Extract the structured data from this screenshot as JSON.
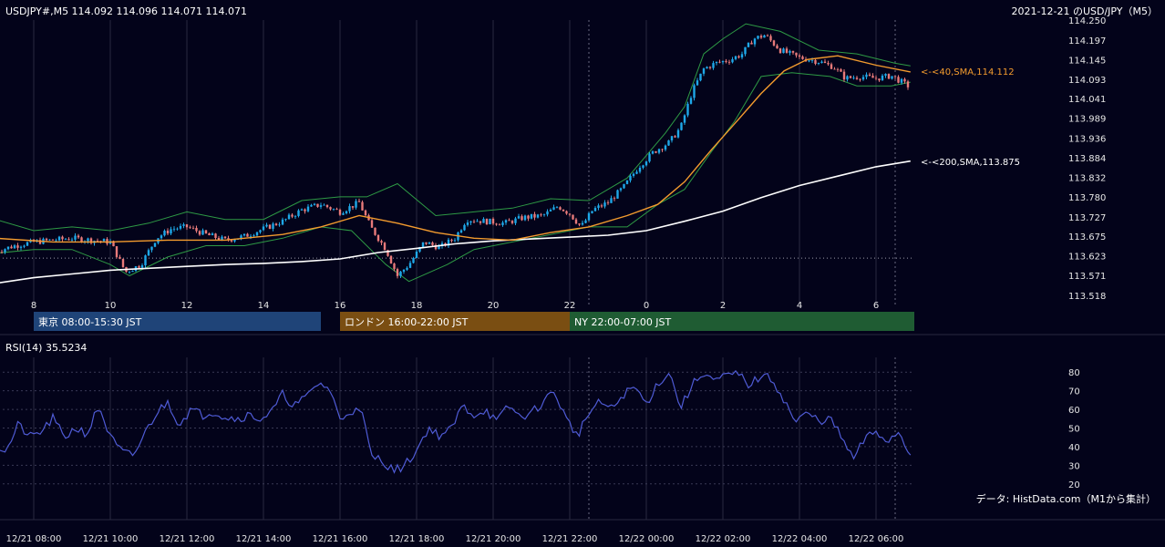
{
  "header": {
    "symbol_info": "USDJPY#,M5 114.092 114.096 114.071 114.071",
    "chart_caption": "2021-12-21 のUSD/JPY（M5）"
  },
  "chart_data": [
    {
      "type": "candlestick",
      "title": "USDJPY#,M5 114.092 114.096 114.071 114.071",
      "subtitle": "2021-12-21 のUSD/JPY（M5）",
      "ylim": [
        113.518,
        114.25
      ],
      "y_ticks": [
        "114.250",
        "114.197",
        "114.145",
        "114.093",
        "114.041",
        "113.989",
        "113.936",
        "113.884",
        "113.832",
        "113.780",
        "113.727",
        "113.675",
        "113.623",
        "113.571",
        "113.518"
      ],
      "x_ticks": [
        "8",
        "10",
        "12",
        "14",
        "16",
        "18",
        "20",
        "22",
        "0",
        "2",
        "4",
        "6"
      ],
      "x_range_hours": [
        7.0,
        30.9
      ],
      "reference_level": 113.617,
      "close_path": [
        [
          7.0,
          113.635
        ],
        [
          7.5,
          113.65
        ],
        [
          8.0,
          113.66
        ],
        [
          8.5,
          113.665
        ],
        [
          9.0,
          113.67
        ],
        [
          9.5,
          113.665
        ],
        [
          10.0,
          113.66
        ],
        [
          10.4,
          113.58
        ],
        [
          10.8,
          113.6
        ],
        [
          11.2,
          113.67
        ],
        [
          11.6,
          113.695
        ],
        [
          12.0,
          113.7
        ],
        [
          12.5,
          113.68
        ],
        [
          13.0,
          113.665
        ],
        [
          13.5,
          113.675
        ],
        [
          14.0,
          113.695
        ],
        [
          14.5,
          113.715
        ],
        [
          15.0,
          113.745
        ],
        [
          15.5,
          113.76
        ],
        [
          16.0,
          113.74
        ],
        [
          16.5,
          113.765
        ],
        [
          16.8,
          113.7
        ],
        [
          17.2,
          113.64
        ],
        [
          17.5,
          113.57
        ],
        [
          17.8,
          113.6
        ],
        [
          18.2,
          113.66
        ],
        [
          18.6,
          113.645
        ],
        [
          19.0,
          113.67
        ],
        [
          19.3,
          113.72
        ],
        [
          19.8,
          113.715
        ],
        [
          20.3,
          113.71
        ],
        [
          20.8,
          113.725
        ],
        [
          21.3,
          113.73
        ],
        [
          21.7,
          113.755
        ],
        [
          22.0,
          113.735
        ],
        [
          22.3,
          113.7
        ],
        [
          22.6,
          113.745
        ],
        [
          23.0,
          113.765
        ],
        [
          23.4,
          113.805
        ],
        [
          23.8,
          113.86
        ],
        [
          24.2,
          113.9
        ],
        [
          24.6,
          113.925
        ],
        [
          24.9,
          113.965
        ],
        [
          25.2,
          114.06
        ],
        [
          25.5,
          114.12
        ],
        [
          25.8,
          114.135
        ],
        [
          26.2,
          114.145
        ],
        [
          26.5,
          114.16
        ],
        [
          26.8,
          114.2
        ],
        [
          27.1,
          114.21
        ],
        [
          27.5,
          114.17
        ],
        [
          28.0,
          114.15
        ],
        [
          28.5,
          114.14
        ],
        [
          28.9,
          114.125
        ],
        [
          29.2,
          114.095
        ],
        [
          29.6,
          114.1
        ],
        [
          30.0,
          114.095
        ],
        [
          30.4,
          114.102
        ],
        [
          30.9,
          114.071
        ]
      ],
      "bb_upper": [
        [
          7.0,
          113.72
        ],
        [
          8.0,
          113.69
        ],
        [
          9.0,
          113.7
        ],
        [
          10.0,
          113.69
        ],
        [
          11.0,
          113.71
        ],
        [
          12.0,
          113.74
        ],
        [
          13.0,
          113.72
        ],
        [
          14.0,
          113.72
        ],
        [
          15.0,
          113.77
        ],
        [
          16.0,
          113.78
        ],
        [
          16.7,
          113.78
        ],
        [
          17.5,
          113.815
        ],
        [
          18.5,
          113.73
        ],
        [
          19.5,
          113.74
        ],
        [
          20.5,
          113.75
        ],
        [
          21.5,
          113.775
        ],
        [
          22.5,
          113.77
        ],
        [
          23.5,
          113.83
        ],
        [
          24.5,
          113.95
        ],
        [
          25.0,
          114.02
        ],
        [
          25.5,
          114.16
        ],
        [
          26.0,
          114.2
        ],
        [
          26.6,
          114.24
        ],
        [
          27.5,
          114.22
        ],
        [
          28.5,
          114.17
        ],
        [
          29.5,
          114.16
        ],
        [
          30.5,
          114.135
        ],
        [
          30.9,
          114.128
        ]
      ],
      "bb_lower": [
        [
          7.0,
          113.63
        ],
        [
          8.0,
          113.64
        ],
        [
          9.0,
          113.64
        ],
        [
          10.0,
          113.6
        ],
        [
          10.5,
          113.57
        ],
        [
          11.5,
          113.62
        ],
        [
          12.5,
          113.65
        ],
        [
          13.5,
          113.65
        ],
        [
          14.5,
          113.67
        ],
        [
          15.5,
          113.7
        ],
        [
          16.3,
          113.69
        ],
        [
          17.2,
          113.6
        ],
        [
          17.8,
          113.555
        ],
        [
          18.8,
          113.6
        ],
        [
          19.5,
          113.64
        ],
        [
          20.5,
          113.66
        ],
        [
          21.5,
          113.68
        ],
        [
          22.5,
          113.7
        ],
        [
          23.5,
          113.7
        ],
        [
          24.3,
          113.76
        ],
        [
          25.0,
          113.8
        ],
        [
          25.7,
          113.9
        ],
        [
          26.3,
          113.98
        ],
        [
          27.0,
          114.1
        ],
        [
          27.8,
          114.11
        ],
        [
          28.8,
          114.1
        ],
        [
          29.5,
          114.075
        ],
        [
          30.4,
          114.075
        ],
        [
          30.9,
          114.085
        ]
      ],
      "sma40": [
        [
          7.0,
          113.67
        ],
        [
          8.5,
          113.66
        ],
        [
          10.0,
          113.66
        ],
        [
          11.5,
          113.665
        ],
        [
          13.0,
          113.665
        ],
        [
          14.5,
          113.68
        ],
        [
          15.5,
          113.7
        ],
        [
          16.5,
          113.73
        ],
        [
          17.5,
          113.71
        ],
        [
          18.5,
          113.685
        ],
        [
          19.5,
          113.67
        ],
        [
          20.5,
          113.665
        ],
        [
          21.5,
          113.685
        ],
        [
          22.5,
          113.7
        ],
        [
          23.5,
          113.73
        ],
        [
          24.3,
          113.76
        ],
        [
          25.0,
          113.82
        ],
        [
          25.7,
          113.905
        ],
        [
          26.4,
          113.985
        ],
        [
          27.0,
          114.055
        ],
        [
          27.6,
          114.115
        ],
        [
          28.2,
          114.145
        ],
        [
          29.0,
          114.155
        ],
        [
          30.0,
          114.13
        ],
        [
          30.9,
          114.112
        ]
      ],
      "sma200": [
        [
          7.0,
          113.55
        ],
        [
          8.0,
          113.565
        ],
        [
          9.0,
          113.575
        ],
        [
          10.0,
          113.585
        ],
        [
          11.0,
          113.59
        ],
        [
          12.0,
          113.595
        ],
        [
          13.0,
          113.6
        ],
        [
          14.0,
          113.603
        ],
        [
          15.0,
          113.608
        ],
        [
          16.0,
          113.615
        ],
        [
          17.0,
          113.632
        ],
        [
          18.0,
          113.643
        ],
        [
          19.0,
          113.655
        ],
        [
          20.0,
          113.663
        ],
        [
          21.0,
          113.668
        ],
        [
          22.0,
          113.673
        ],
        [
          23.0,
          113.678
        ],
        [
          24.0,
          113.69
        ],
        [
          25.0,
          113.715
        ],
        [
          26.0,
          113.742
        ],
        [
          27.0,
          113.778
        ],
        [
          28.0,
          113.81
        ],
        [
          29.0,
          113.835
        ],
        [
          30.0,
          113.86
        ],
        [
          30.9,
          113.875
        ]
      ],
      "sessions": [
        {
          "label": "東京 08:00-15:30 JST",
          "color": "#1f4478",
          "start": 8.0,
          "end": 15.5
        },
        {
          "label": "ロンドン 16:00-22:00 JST",
          "color": "#7a4e12",
          "start": 16.0,
          "end": 22.0
        },
        {
          "label": "NY 22:00-07:00 JST",
          "color": "#1f5c33",
          "start": 22.0,
          "end": 31.0
        }
      ],
      "labels": {
        "sma40_label": "<-<40,SMA,114.112",
        "sma200_label": "<-<200,SMA,113.875"
      }
    },
    {
      "type": "line",
      "title": "RSI(14) 35.5234",
      "ylim": [
        15,
        85
      ],
      "y_ticks": [
        "80",
        "70",
        "60",
        "50",
        "40",
        "30",
        "20"
      ],
      "series": [
        {
          "name": "RSI(14)",
          "values": [
            [
              7.0,
              40
            ],
            [
              7.3,
              38
            ],
            [
              7.6,
              52
            ],
            [
              7.9,
              45
            ],
            [
              8.2,
              48
            ],
            [
              8.5,
              55
            ],
            [
              8.8,
              45
            ],
            [
              9.1,
              50
            ],
            [
              9.4,
              47
            ],
            [
              9.7,
              62
            ],
            [
              10.0,
              45
            ],
            [
              10.3,
              37
            ],
            [
              10.6,
              35
            ],
            [
              10.9,
              47
            ],
            [
              11.2,
              58
            ],
            [
              11.5,
              64
            ],
            [
              11.8,
              52
            ],
            [
              12.1,
              60
            ],
            [
              12.4,
              57
            ],
            [
              12.7,
              59
            ],
            [
              13.0,
              56
            ],
            [
              13.3,
              55
            ],
            [
              13.6,
              57
            ],
            [
              13.9,
              55
            ],
            [
              14.2,
              58
            ],
            [
              14.5,
              68
            ],
            [
              14.8,
              62
            ],
            [
              15.1,
              66
            ],
            [
              15.4,
              74
            ],
            [
              15.7,
              72
            ],
            [
              16.0,
              55
            ],
            [
              16.3,
              60
            ],
            [
              16.6,
              57
            ],
            [
              16.8,
              35
            ],
            [
              17.1,
              33
            ],
            [
              17.4,
              27
            ],
            [
              17.7,
              30
            ],
            [
              18.0,
              38
            ],
            [
              18.3,
              50
            ],
            [
              18.6,
              46
            ],
            [
              18.9,
              49
            ],
            [
              19.2,
              62
            ],
            [
              19.5,
              57
            ],
            [
              19.8,
              60
            ],
            [
              20.1,
              53
            ],
            [
              20.4,
              62
            ],
            [
              20.7,
              56
            ],
            [
              21.0,
              58
            ],
            [
              21.3,
              64
            ],
            [
              21.6,
              70
            ],
            [
              21.9,
              55
            ],
            [
              22.2,
              46
            ],
            [
              22.5,
              58
            ],
            [
              22.8,
              64
            ],
            [
              23.1,
              60
            ],
            [
              23.4,
              68
            ],
            [
              23.7,
              72
            ],
            [
              24.0,
              63
            ],
            [
              24.3,
              74
            ],
            [
              24.6,
              80
            ],
            [
              24.9,
              61
            ],
            [
              25.2,
              73
            ],
            [
              25.5,
              80
            ],
            [
              25.8,
              75
            ],
            [
              26.1,
              78
            ],
            [
              26.4,
              79
            ],
            [
              26.7,
              73
            ],
            [
              27.0,
              78
            ],
            [
              27.3,
              76
            ],
            [
              27.6,
              65
            ],
            [
              27.9,
              53
            ],
            [
              28.2,
              58
            ],
            [
              28.5,
              54
            ],
            [
              28.8,
              55
            ],
            [
              29.1,
              45
            ],
            [
              29.4,
              33
            ],
            [
              29.7,
              44
            ],
            [
              30.0,
              48
            ],
            [
              30.3,
              43
            ],
            [
              30.6,
              48
            ],
            [
              30.9,
              35.5
            ]
          ]
        }
      ]
    }
  ],
  "x_axis_time_labels": [
    "12/21 08:00",
    "12/21 10:00",
    "12/21 12:00",
    "12/21 14:00",
    "12/21 16:00",
    "12/21 18:00",
    "12/21 20:00",
    "12/21 22:00",
    "12/22 00:00",
    "12/22 02:00",
    "12/22 04:00",
    "12/22 06:00"
  ],
  "footer": {
    "source_note": "データ: HistData.com（M1から集計）"
  },
  "colors": {
    "background": "#03031a",
    "bull": "#1ea8e8",
    "bear": "#e87a7a",
    "sma40": "#f39b2e",
    "sma200": "#ffffff",
    "bollinger": "#2e9a45",
    "rsi": "#4f5bd5",
    "grid": "#2a2a40"
  }
}
